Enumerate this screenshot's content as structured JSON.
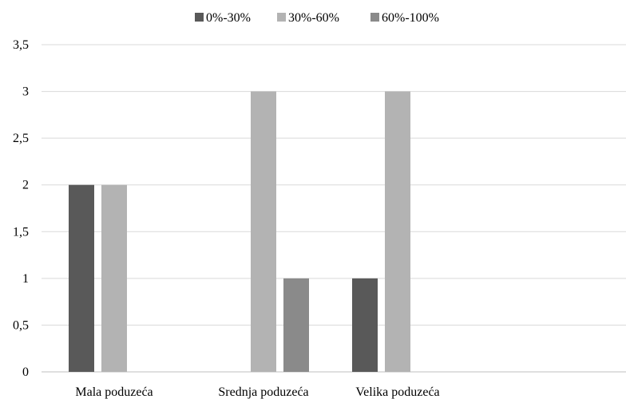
{
  "chart_data": {
    "type": "bar",
    "categories": [
      "Mala poduzeća",
      "Srednja poduzeća",
      "Velika poduzeća"
    ],
    "series": [
      {
        "name": "0%-30%",
        "values": [
          2,
          0,
          1
        ],
        "color": "#595959"
      },
      {
        "name": "30%-60%",
        "values": [
          2,
          3,
          3
        ],
        "color": "#b3b3b3"
      },
      {
        "name": "60%-100%",
        "values": [
          0,
          1,
          0
        ],
        "color": "#8a8a8a"
      }
    ],
    "yticks": [
      "0",
      "0,5",
      "1",
      "1,5",
      "2",
      "2,5",
      "3",
      "3,5"
    ],
    "ylim": [
      0,
      3.5
    ],
    "grid": true,
    "legend_position": "top",
    "title": "",
    "xlabel": "",
    "ylabel": ""
  }
}
